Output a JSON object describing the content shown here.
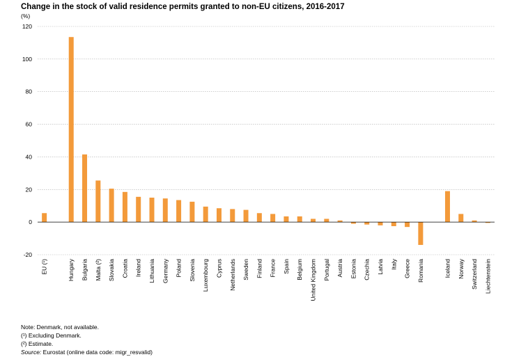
{
  "chart_data": {
    "type": "bar",
    "title": "Change in the stock of valid residence permits granted to non-EU citizens, 2016-2017",
    "unit_label": "(%)",
    "ylim": [
      -20,
      120
    ],
    "yticks": [
      -20,
      0,
      20,
      40,
      60,
      80,
      100,
      120
    ],
    "grid": true,
    "bar_color": "#f39a3a",
    "categories": [
      "EU (¹)",
      "",
      "Hungary",
      "Bulgaria",
      "Malta (²)",
      "Slovakia",
      "Croatia",
      "Ireland",
      "Lithuania",
      "Germany",
      "Poland",
      "Slovenia",
      "Luxembourg",
      "Cyprus",
      "Netherlands",
      "Sweden",
      "Finland",
      "France",
      "Spain",
      "Belgium",
      "United Kingdom",
      "Portugal",
      "Austria",
      "Estonia",
      "Czechia",
      "Latvia",
      "Italy",
      "Greece",
      "Romania",
      "",
      "Iceland",
      "Norway",
      "Switzerland",
      "Liechtenstein"
    ],
    "values": [
      5.5,
      null,
      113.5,
      41.5,
      25.5,
      20.5,
      18.5,
      15.5,
      15,
      14.5,
      13.5,
      12.5,
      9.5,
      8.5,
      8,
      7.5,
      5.5,
      5,
      3.5,
      3.5,
      2,
      2,
      1,
      -1,
      -1.5,
      -2,
      -2.5,
      -3,
      -14,
      null,
      19,
      5,
      1,
      -0.5
    ]
  },
  "notes": {
    "line1": "Note: Denmark, not available.",
    "line2": "(¹) Excluding Denmark.",
    "line3": "(²) Estimate.",
    "source_label": "Source:",
    "source_text": " Eurostat (online data code: migr_resvalid)"
  }
}
